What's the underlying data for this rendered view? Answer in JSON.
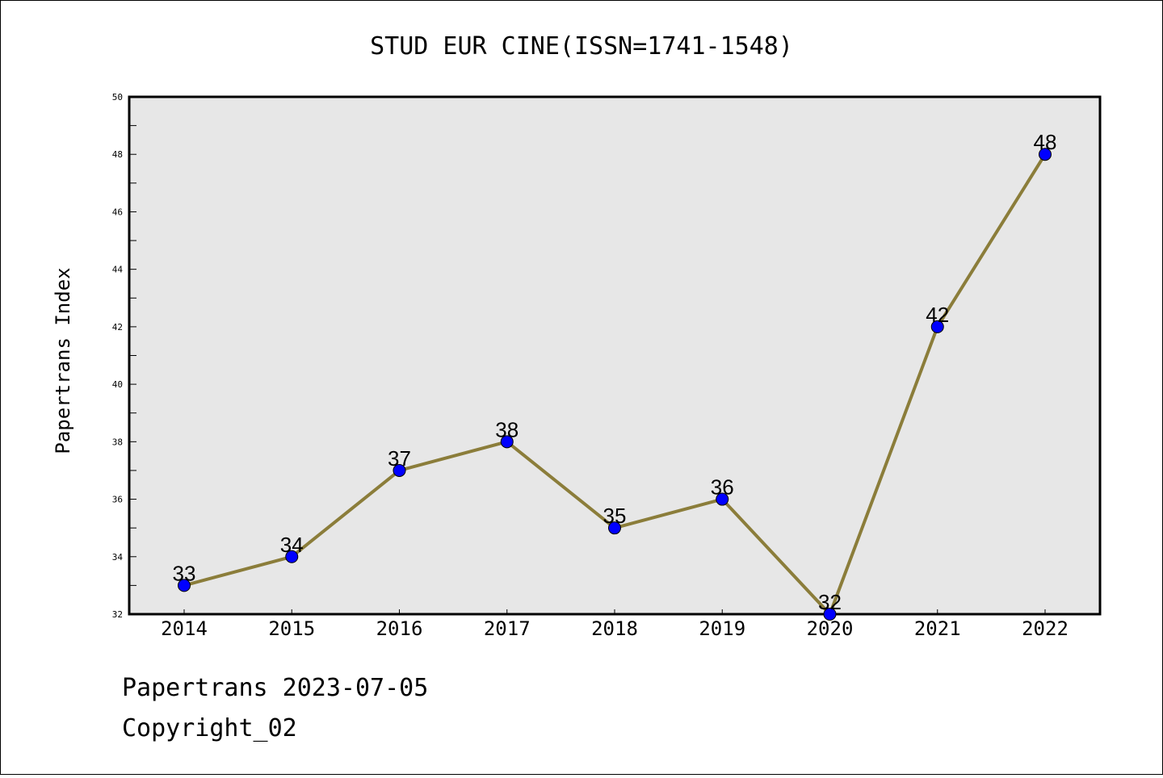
{
  "chart_data": {
    "type": "line",
    "title": "STUD EUR CINE(ISSN=1741-1548)",
    "xlabel": "",
    "ylabel": "Papertrans Index",
    "categories": [
      "2014",
      "2015",
      "2016",
      "2017",
      "2018",
      "2019",
      "2020",
      "2021",
      "2022"
    ],
    "series": [
      {
        "values": [
          33,
          34,
          37,
          38,
          35,
          36,
          32,
          42,
          48
        ]
      }
    ],
    "ylim": [
      32,
      50
    ],
    "yticks": [
      32,
      34,
      36,
      38,
      40,
      42,
      44,
      46,
      48,
      50
    ],
    "grid": false,
    "legend": "none",
    "data_labels": true,
    "colors": {
      "line": "#8b7d3a",
      "marker": "#0000ff",
      "plot_background": "#e7e7e7"
    }
  },
  "footer": {
    "line1": "Papertrans 2023-07-05",
    "line2": "Copyright_02"
  }
}
